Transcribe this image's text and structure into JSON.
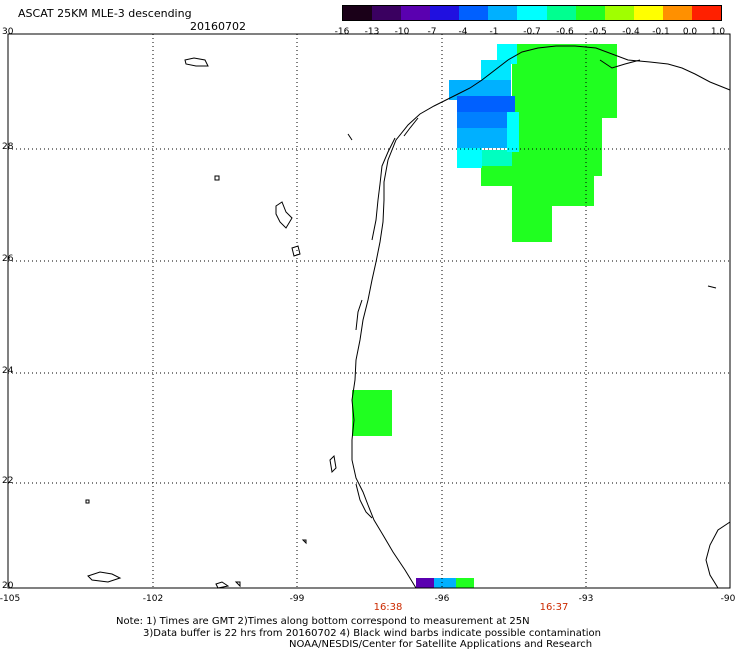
{
  "title": "ASCAT 25KM MLE-3 descending",
  "date": "20160702",
  "colorbar": {
    "labels": [
      "-16",
      "-13",
      "-10",
      "-7",
      "-4",
      "-1",
      "-0.7",
      "-0.6",
      "-0.5",
      "-0.4",
      "-0.1",
      "0.0",
      "1.0"
    ],
    "colors": [
      "#1a0018",
      "#3a0060",
      "#5a00b0",
      "#2010e0",
      "#0060ff",
      "#00b0ff",
      "#00ffff",
      "#00ff90",
      "#20ff20",
      "#a0ff00",
      "#ffff00",
      "#ff9000",
      "#ff2000"
    ]
  },
  "axes": {
    "lat_labels": [
      "30",
      "28",
      "26",
      "24",
      "22",
      "20"
    ],
    "lon_labels": [
      "-105",
      "-102",
      "-99",
      "-96",
      "-93",
      "-90"
    ]
  },
  "times": [
    "16:38",
    "16:37"
  ],
  "notes": [
    "Note: 1) Times are GMT 2)Times along bottom correspond to measurement at 25N",
    "3)Data buffer is 22 hrs from 20160702 4) Black wind barbs indicate possible contamination",
    "NOAA/NESDIS/Center for Satellite Applications and Research"
  ]
}
